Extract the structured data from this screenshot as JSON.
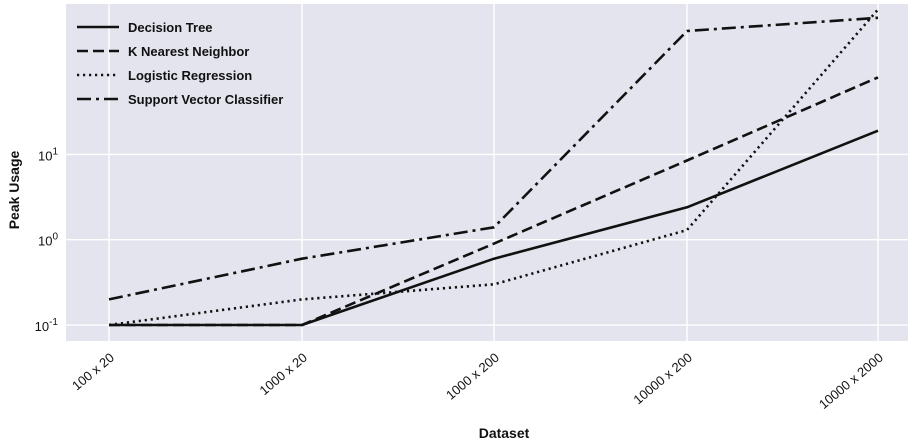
{
  "chart_data": {
    "type": "line",
    "title": "",
    "xlabel": "Dataset",
    "ylabel": "Peak Usage",
    "yscale": "log",
    "ylim": [
      0.065,
      580
    ],
    "grid": true,
    "legend_position": "top-left",
    "categories": [
      "100 x 20",
      "1000 x 20",
      "1000 x 200",
      "10000 x 200",
      "10000 x 2000"
    ],
    "y_ticks": [
      {
        "value": 0.1,
        "base": "10",
        "exp": "-1"
      },
      {
        "value": 1,
        "base": "10",
        "exp": "0"
      },
      {
        "value": 10,
        "base": "10",
        "exp": "1"
      }
    ],
    "series": [
      {
        "name": "Decision Tree",
        "style": "solid",
        "values": [
          0.1,
          0.1,
          0.6,
          2.4,
          19
        ]
      },
      {
        "name": "K Nearest Neighbor",
        "style": "dashed",
        "values": [
          0.1,
          0.1,
          0.9,
          8.5,
          80
        ]
      },
      {
        "name": "Logistic Regression",
        "style": "dotted",
        "values": [
          0.1,
          0.2,
          0.3,
          1.3,
          500
        ]
      },
      {
        "name": "Support Vector Classifier",
        "style": "dashdot",
        "values": [
          0.2,
          0.6,
          1.4,
          280,
          400
        ]
      }
    ],
    "colors": {
      "background": "#e4e4ef",
      "grid": "#ffffff",
      "line": "#111111"
    }
  }
}
